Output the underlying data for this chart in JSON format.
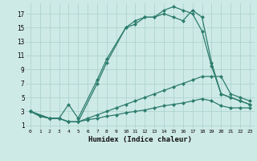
{
  "xlabel": "Humidex (Indice chaleur)",
  "background_color": "#ceeae6",
  "grid_color": "#aed4cf",
  "line_color": "#2d7d6e",
  "xlim": [
    -0.5,
    23.5
  ],
  "ylim": [
    0.5,
    18.5
  ],
  "xticks": [
    0,
    1,
    2,
    3,
    4,
    5,
    6,
    7,
    8,
    9,
    10,
    11,
    12,
    13,
    14,
    15,
    16,
    17,
    18,
    19,
    20,
    21,
    22,
    23
  ],
  "yticks": [
    1,
    3,
    5,
    7,
    9,
    11,
    13,
    15,
    17
  ],
  "line1_x": [
    0,
    1,
    2,
    3,
    4,
    5,
    7,
    8,
    10,
    11,
    12,
    13,
    14,
    15,
    16,
    17,
    18,
    19,
    20,
    21,
    22,
    23
  ],
  "line1_y": [
    3,
    2.3,
    2.0,
    2.0,
    4.0,
    2.0,
    7.5,
    10.5,
    15.0,
    15.5,
    16.5,
    16.5,
    17.5,
    18.0,
    17.5,
    17.0,
    14.5,
    9.5,
    5.5,
    5.0,
    4.5,
    4.0
  ],
  "line2_x": [
    0,
    1,
    2,
    3,
    4,
    5,
    7,
    8,
    10,
    11,
    12,
    13,
    14,
    15,
    16,
    17,
    18,
    19,
    20,
    21,
    22,
    23
  ],
  "line2_y": [
    3,
    2.3,
    2.0,
    2.0,
    1.5,
    1.5,
    7.0,
    10.0,
    15.0,
    16.0,
    16.5,
    16.5,
    17.0,
    16.5,
    16.0,
    17.5,
    16.5,
    10.0,
    5.5,
    5.0,
    4.5,
    4.0
  ],
  "line3_x": [
    0,
    2,
    3,
    4,
    5,
    6,
    7,
    8,
    9,
    10,
    11,
    12,
    13,
    14,
    15,
    16,
    17,
    18,
    19,
    20,
    21,
    22,
    23
  ],
  "line3_y": [
    3,
    2.0,
    2.0,
    1.5,
    1.5,
    2.0,
    2.5,
    3.0,
    3.5,
    4.0,
    4.5,
    5.0,
    5.5,
    6.0,
    6.5,
    7.0,
    7.5,
    8.0,
    8.0,
    8.0,
    5.5,
    5.0,
    4.5
  ],
  "line4_x": [
    0,
    2,
    3,
    4,
    5,
    6,
    7,
    8,
    9,
    10,
    11,
    12,
    13,
    14,
    15,
    16,
    17,
    18,
    19,
    20,
    21,
    22,
    23
  ],
  "line4_y": [
    3,
    2.0,
    2.0,
    1.5,
    1.5,
    1.8,
    2.0,
    2.3,
    2.5,
    2.8,
    3.0,
    3.2,
    3.5,
    3.8,
    4.0,
    4.2,
    4.5,
    4.8,
    4.5,
    3.8,
    3.5,
    3.5,
    3.5
  ]
}
